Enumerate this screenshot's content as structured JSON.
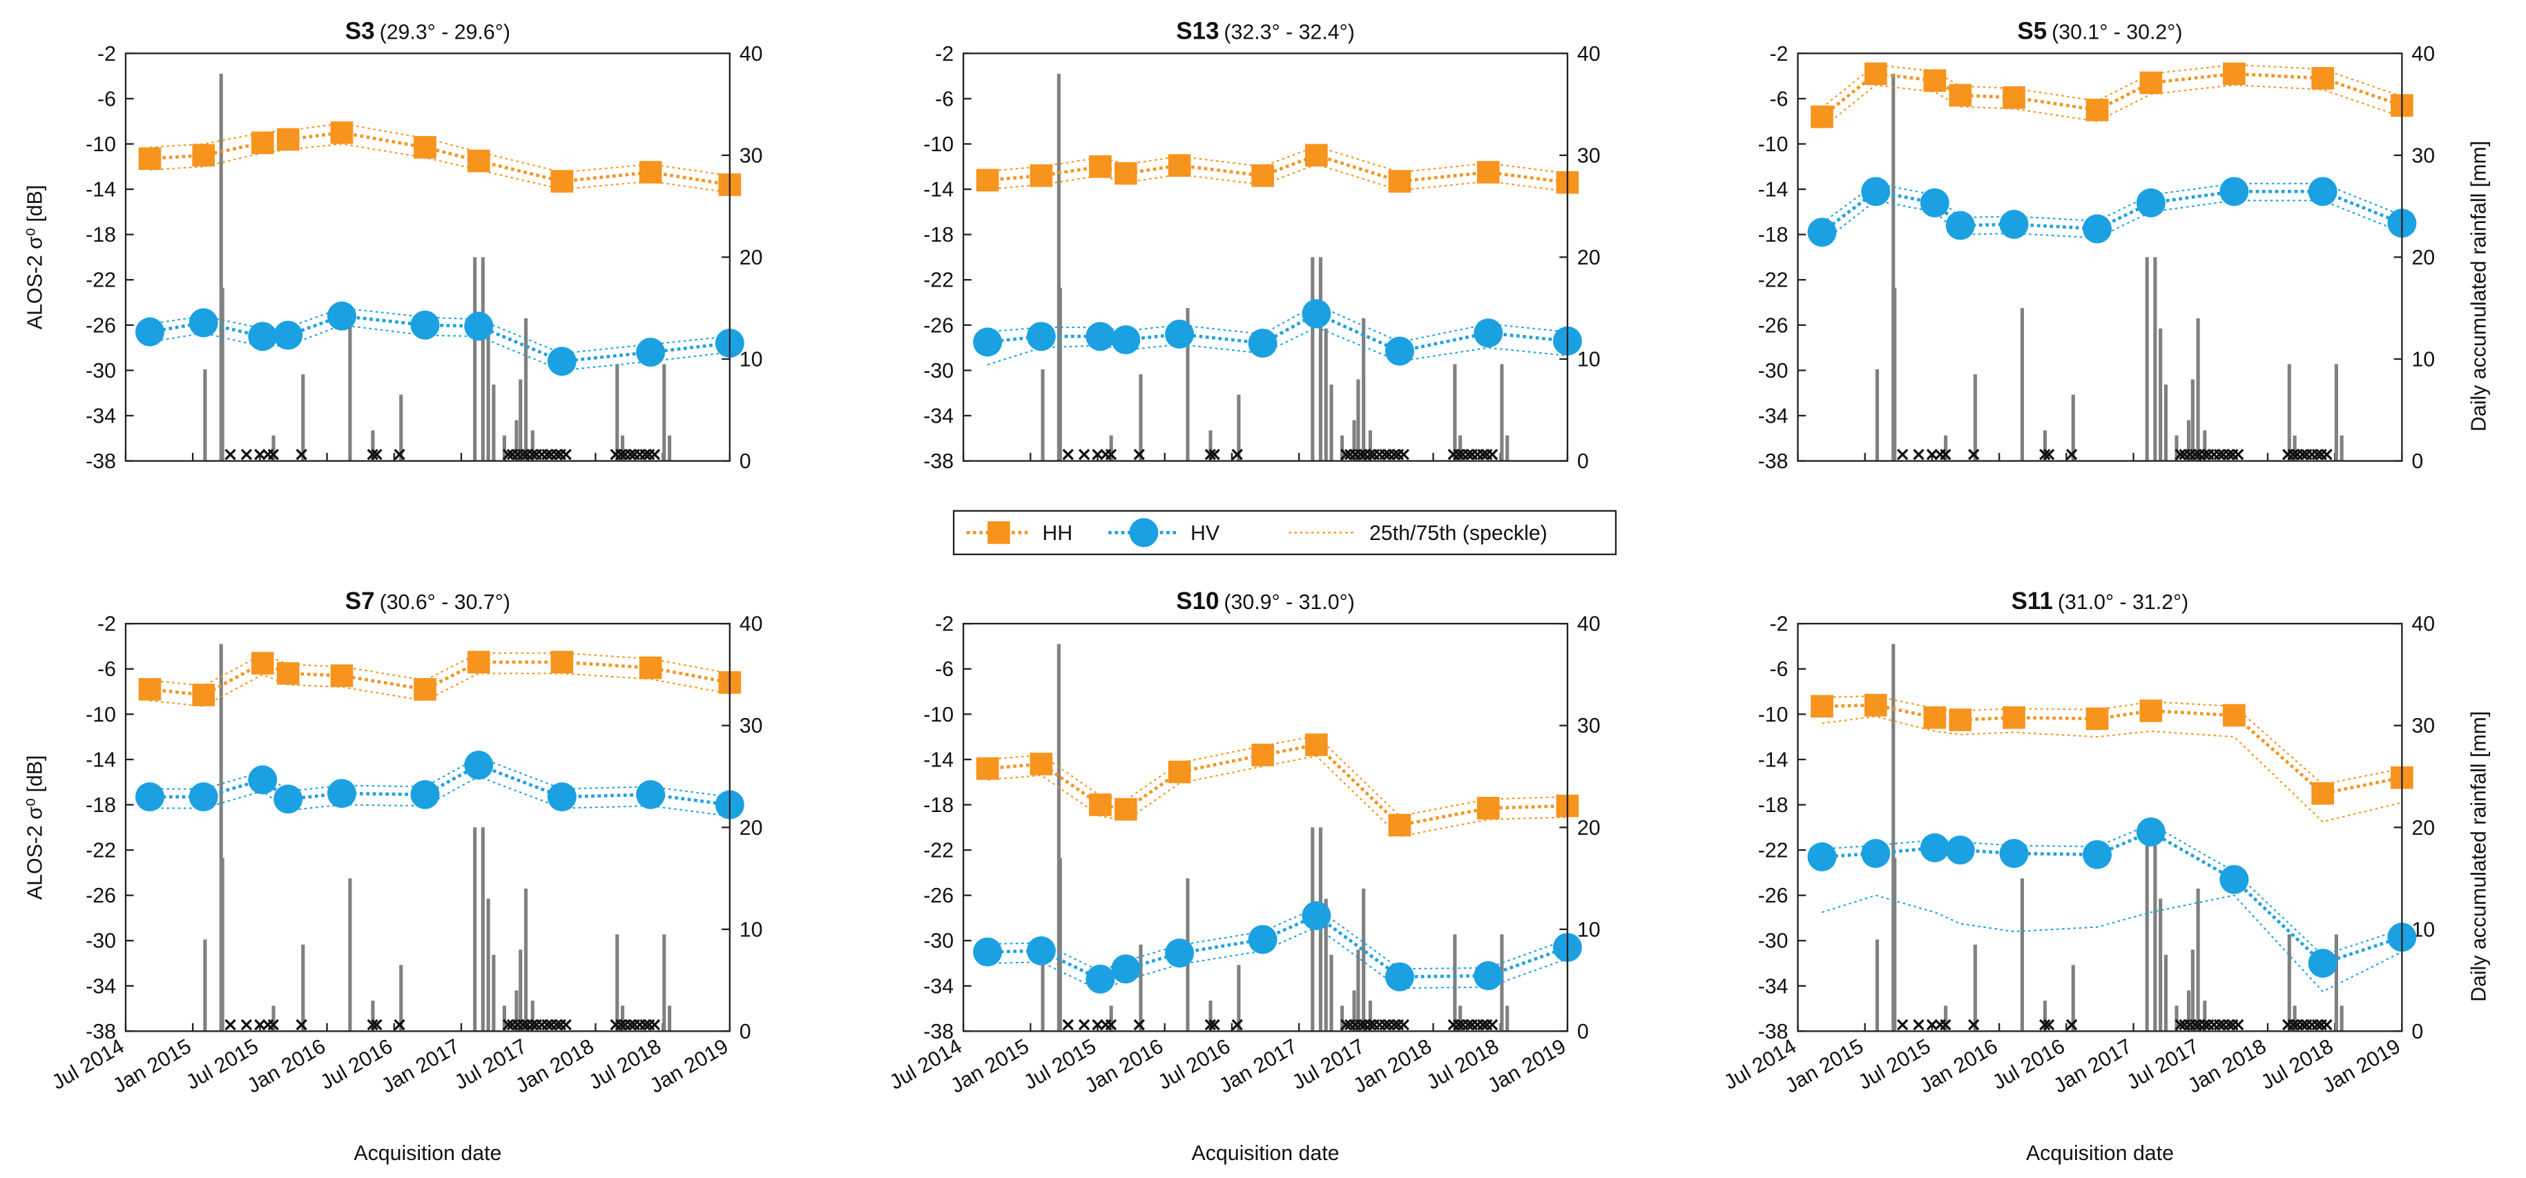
{
  "axes": {
    "xlim": [
      2014.5,
      2019.0
    ],
    "xticks": [
      {
        "value": 2014.5,
        "label": "Jul 2014"
      },
      {
        "value": 2015.0,
        "label": "Jan 2015"
      },
      {
        "value": 2015.5,
        "label": "Jul 2015"
      },
      {
        "value": 2016.0,
        "label": "Jan 2016"
      },
      {
        "value": 2016.5,
        "label": "Jul 2016"
      },
      {
        "value": 2017.0,
        "label": "Jan 2017"
      },
      {
        "value": 2017.5,
        "label": "Jul 2017"
      },
      {
        "value": 2018.0,
        "label": "Jan 2018"
      },
      {
        "value": 2018.5,
        "label": "Jul 2018"
      },
      {
        "value": 2019.0,
        "label": "Jan 2019"
      }
    ],
    "ylim": [
      -38,
      -2
    ],
    "yticks": [
      -38,
      -34,
      -30,
      -26,
      -22,
      -18,
      -14,
      -10,
      -6,
      -2
    ],
    "y2lim": [
      0,
      40
    ],
    "y2ticks": [
      0,
      10,
      20,
      30,
      40
    ]
  },
  "legend": {
    "band_label": "25th/75th (speckle)"
  },
  "rainfall": {
    "color": "#808080",
    "x": [
      2015.09,
      2015.21,
      2015.22,
      2015.6,
      2015.82,
      2016.17,
      2016.34,
      2016.55,
      2017.1,
      2017.16,
      2017.2,
      2017.24,
      2017.32,
      2017.41,
      2017.44,
      2017.48,
      2017.53,
      2018.16,
      2018.2,
      2018.51,
      2018.55
    ],
    "values": [
      9,
      38,
      17,
      2.5,
      8.5,
      15,
      3,
      6.5,
      20,
      20,
      13,
      7.5,
      2.5,
      4,
      8,
      14,
      3,
      9.5,
      2.5,
      9.5,
      2.5
    ],
    "no_data_x": [
      2015.28,
      2015.4,
      2015.5,
      2015.56,
      2015.6,
      2015.81,
      2016.34,
      2016.37,
      2016.54,
      2017.35,
      2017.38,
      2017.42,
      2017.46,
      2017.49,
      2017.53,
      2017.56,
      2017.6,
      2017.64,
      2017.67,
      2017.71,
      2017.74,
      2017.78,
      2018.15,
      2018.19,
      2018.22,
      2018.26,
      2018.29,
      2018.33,
      2018.37,
      2018.4,
      2018.44
    ]
  },
  "chart_data": [
    {
      "type": "line",
      "title": "S3",
      "subtitle": "(29.3° - 29.6°)",
      "ylabel": "ALOS-2 σ⁰ [dB]",
      "x": [
        2014.68,
        2015.08,
        2015.52,
        2015.71,
        2016.11,
        2016.73,
        2017.13,
        2017.75,
        2018.41,
        2019.0
      ],
      "series": [
        {
          "name": "HH",
          "color": "#f7941d",
          "marker": "square",
          "values": [
            -11.3,
            -11,
            -9.9,
            -9.6,
            -9,
            -10.3,
            -11.5,
            -13.3,
            -12.5,
            -13.6
          ],
          "q75": [
            -10.3,
            -10,
            -9,
            -8.8,
            -8.2,
            -9.5,
            -10.7,
            -12.5,
            -11.8,
            -12.8
          ],
          "q25": [
            -12.3,
            -12,
            -10.8,
            -10.5,
            -10,
            -11.2,
            -12.3,
            -14,
            -13.3,
            -14.3
          ]
        },
        {
          "name": "HV",
          "color": "#1ba1e2",
          "marker": "circle",
          "values": [
            -26.6,
            -25.8,
            -27,
            -26.9,
            -25.2,
            -26,
            -26.1,
            -29.2,
            -28.4,
            -27.6
          ],
          "q75": [
            -25.9,
            -25.2,
            -26.3,
            -26.2,
            -24.5,
            -25.3,
            -25.5,
            -28.5,
            -27.7,
            -27
          ],
          "q25": [
            -27.5,
            -26.7,
            -27.9,
            -27.8,
            -26,
            -26.9,
            -27,
            -30,
            -29.2,
            -28.4
          ]
        }
      ]
    },
    {
      "type": "line",
      "title": "S13",
      "subtitle": "(32.3° - 32.4°)",
      "x": [
        2014.68,
        2015.08,
        2015.52,
        2015.71,
        2016.11,
        2016.73,
        2017.13,
        2017.75,
        2018.41,
        2019.0
      ],
      "series": [
        {
          "name": "HH",
          "color": "#f7941d",
          "marker": "square",
          "values": [
            -13.2,
            -12.8,
            -12,
            -12.6,
            -11.9,
            -12.8,
            -11,
            -13.3,
            -12.5,
            -13.4
          ],
          "q75": [
            -12.4,
            -12,
            -11.2,
            -11.8,
            -11.1,
            -12,
            -10.2,
            -12.5,
            -11.7,
            -12.6
          ],
          "q25": [
            -14,
            -13.6,
            -12.8,
            -13.4,
            -12.7,
            -13.6,
            -11.8,
            -14.1,
            -13.3,
            -14.2
          ]
        },
        {
          "name": "HV",
          "color": "#1ba1e2",
          "marker": "circle",
          "values": [
            -27.5,
            -27,
            -27,
            -27.3,
            -26.8,
            -27.6,
            -25,
            -28.3,
            -26.7,
            -27.4
          ],
          "q75": [
            -26.6,
            -26.2,
            -26.2,
            -26.5,
            -26,
            -26.8,
            -24.2,
            -27.5,
            -25.9,
            -26.6
          ],
          "q25": [
            -29.5,
            -28,
            -27.8,
            -28.2,
            -27.7,
            -28.5,
            -26.2,
            -29.2,
            -28,
            -28.7
          ]
        }
      ]
    },
    {
      "type": "line",
      "title": "S5",
      "subtitle": "(30.1° - 30.2°)",
      "y2label": "Daily accumulated rainfall [mm]",
      "x": [
        2014.68,
        2015.08,
        2015.52,
        2015.71,
        2016.11,
        2016.73,
        2017.13,
        2017.75,
        2018.41,
        2019.0
      ],
      "series": [
        {
          "name": "HH",
          "color": "#f7941d",
          "marker": "square",
          "values": [
            -7.6,
            -3.8,
            -4.4,
            -5.7,
            -5.9,
            -7,
            -4.6,
            -3.8,
            -4.2,
            -6.6
          ],
          "q75": [
            -6.8,
            -3,
            -3.6,
            -4.9,
            -5.1,
            -6.2,
            -3.8,
            -3,
            -3.4,
            -5.8
          ],
          "q25": [
            -8.6,
            -4.8,
            -5.4,
            -6.7,
            -6.9,
            -8,
            -5.6,
            -4.8,
            -5.2,
            -7.6
          ]
        },
        {
          "name": "HV",
          "color": "#1ba1e2",
          "marker": "circle",
          "values": [
            -17.8,
            -14.2,
            -15.2,
            -17.2,
            -17.1,
            -17.5,
            -15.2,
            -14.2,
            -14.2,
            -17
          ],
          "q75": [
            -17,
            -13.5,
            -14.5,
            -16.5,
            -16.4,
            -16.8,
            -14.5,
            -13.5,
            -13.5,
            -16.3
          ],
          "q25": [
            -18.7,
            -15,
            -16,
            -18,
            -17.9,
            -18.3,
            -16,
            -15,
            -15,
            -17.8
          ]
        }
      ]
    },
    {
      "type": "line",
      "title": "S7",
      "subtitle": "(30.6° - 30.7°)",
      "ylabel": "ALOS-2 σ⁰ [dB]",
      "xlabel": "Acquisition date",
      "x": [
        2014.68,
        2015.08,
        2015.52,
        2015.71,
        2016.11,
        2016.73,
        2017.13,
        2017.75,
        2018.41,
        2019.0
      ],
      "series": [
        {
          "name": "HH",
          "color": "#f7941d",
          "marker": "square",
          "values": [
            -7.8,
            -8.3,
            -5.5,
            -6.4,
            -6.6,
            -7.8,
            -5.4,
            -5.4,
            -5.9,
            -7.2
          ],
          "q75": [
            -7,
            -7.5,
            -4.7,
            -5.6,
            -5.8,
            -7,
            -4.6,
            -4.6,
            -5.1,
            -6.4
          ],
          "q25": [
            -8.8,
            -9.3,
            -6.5,
            -7.4,
            -7.6,
            -8.8,
            -6.4,
            -6.4,
            -6.9,
            -8.2
          ]
        },
        {
          "name": "HV",
          "color": "#1ba1e2",
          "marker": "circle",
          "values": [
            -17.3,
            -17.3,
            -15.8,
            -17.5,
            -17,
            -17.1,
            -14.5,
            -17.3,
            -17.1,
            -18
          ],
          "q75": [
            -16.6,
            -16.6,
            -15.1,
            -16.8,
            -16.3,
            -16.4,
            -13.8,
            -16.6,
            -16.4,
            -17.3
          ],
          "q25": [
            -18.3,
            -18.3,
            -16.8,
            -18.5,
            -18,
            -18.1,
            -15.5,
            -18.3,
            -18.1,
            -19
          ]
        }
      ]
    },
    {
      "type": "line",
      "title": "S10",
      "subtitle": "(30.9° - 31.0°)",
      "xlabel": "Acquisition date",
      "x": [
        2014.68,
        2015.08,
        2015.52,
        2015.71,
        2016.11,
        2016.73,
        2017.13,
        2017.75,
        2018.41,
        2019.0
      ],
      "series": [
        {
          "name": "HH",
          "color": "#f7941d",
          "marker": "square",
          "values": [
            -14.8,
            -14.4,
            -18,
            -18.4,
            -15.1,
            -13.6,
            -12.7,
            -19.8,
            -18.3,
            -18.1
          ],
          "q75": [
            -14,
            -13.6,
            -17.2,
            -17.6,
            -14.3,
            -12.8,
            -11.9,
            -19,
            -17.5,
            -17.3
          ],
          "q25": [
            -15.8,
            -15.4,
            -19,
            -19.4,
            -16.1,
            -14.6,
            -13.7,
            -20.8,
            -19.3,
            -19.1
          ]
        },
        {
          "name": "HV",
          "color": "#1ba1e2",
          "marker": "circle",
          "values": [
            -31,
            -30.9,
            -33.4,
            -32.5,
            -31.1,
            -29.9,
            -27.8,
            -33.2,
            -33.1,
            -30.6
          ],
          "q75": [
            -30.3,
            -30.2,
            -32.7,
            -31.8,
            -30.4,
            -29.2,
            -27.1,
            -32.5,
            -32.4,
            -29.9
          ],
          "q25": [
            -32,
            -31.9,
            -34.4,
            -33.5,
            -32.1,
            -30.9,
            -28.8,
            -34.2,
            -34.1,
            -31.6
          ]
        }
      ]
    },
    {
      "type": "line",
      "title": "S11",
      "subtitle": "(31.0° - 31.2°)",
      "xlabel": "Acquisition date",
      "y2label": "Daily accumulated rainfall [mm]",
      "x": [
        2014.68,
        2015.08,
        2015.52,
        2015.71,
        2016.11,
        2016.73,
        2017.13,
        2017.75,
        2018.41,
        2019.0
      ],
      "series": [
        {
          "name": "HH",
          "color": "#f7941d",
          "marker": "square",
          "values": [
            -9.3,
            -9.2,
            -10.3,
            -10.5,
            -10.3,
            -10.4,
            -9.7,
            -10.1,
            -17,
            -15.6
          ],
          "q75": [
            -8.5,
            -8.4,
            -9.5,
            -9.7,
            -9.5,
            -9.6,
            -8.9,
            -9.3,
            -16.2,
            -14.8
          ],
          "q25": [
            -10.8,
            -10.2,
            -11.5,
            -11.8,
            -11.6,
            -12,
            -11.5,
            -12,
            -19.5,
            -17.8
          ]
        },
        {
          "name": "HV",
          "color": "#1ba1e2",
          "marker": "circle",
          "values": [
            -22.6,
            -22.3,
            -21.8,
            -22,
            -22.3,
            -22.4,
            -20.4,
            -24.6,
            -32,
            -29.7
          ],
          "q75": [
            -21.9,
            -21.6,
            -21.1,
            -21.3,
            -21.6,
            -21.7,
            -19.7,
            -23.9,
            -31.3,
            -29
          ],
          "q25": [
            -27.5,
            -26,
            -27.5,
            -28.5,
            -29.2,
            -28.8,
            -27.5,
            -26,
            -34.5,
            -31
          ]
        }
      ]
    }
  ]
}
